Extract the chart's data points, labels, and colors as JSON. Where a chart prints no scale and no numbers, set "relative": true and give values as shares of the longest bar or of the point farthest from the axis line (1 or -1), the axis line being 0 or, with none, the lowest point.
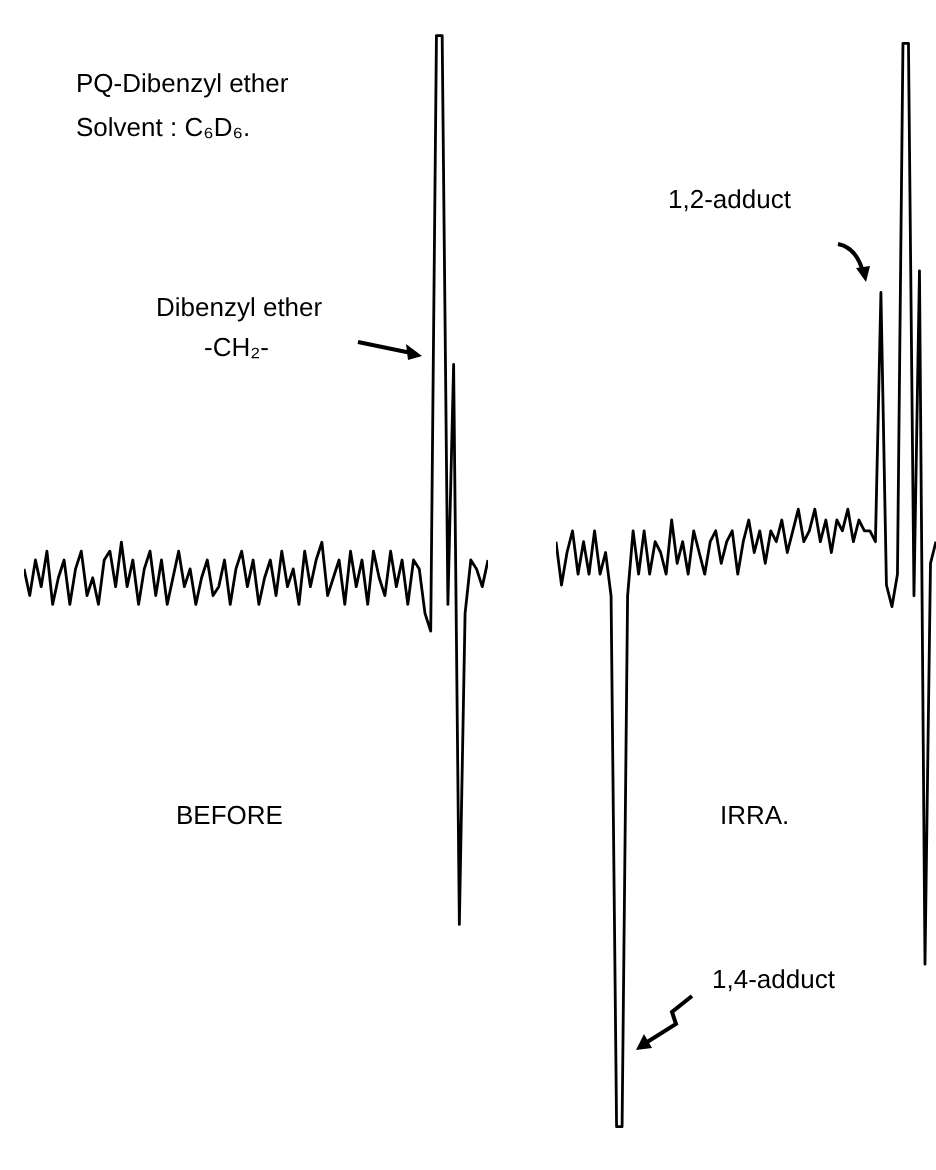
{
  "chart_data": [
    {
      "type": "line",
      "relative": true,
      "marker": "none",
      "color": "#000000",
      "categories": [
        null,
        null,
        null,
        null,
        null,
        null,
        null,
        null,
        null,
        null,
        null,
        null,
        null,
        null,
        null,
        null,
        null,
        null,
        null,
        null,
        null,
        null,
        null,
        null,
        null,
        null,
        null,
        null,
        null,
        null,
        null,
        null,
        null,
        null,
        null,
        null,
        null,
        null,
        null,
        null,
        null,
        null,
        null,
        null,
        null,
        null,
        null,
        null,
        null,
        null,
        null,
        null,
        null,
        null,
        null,
        null,
        null,
        null,
        null,
        null,
        null,
        null,
        null,
        null,
        null,
        null,
        null,
        null,
        null,
        null,
        null,
        null,
        null,
        null,
        null,
        null,
        null,
        null,
        null,
        null,
        null,
        null
      ],
      "values": [
        0.4,
        0.37,
        0.41,
        0.38,
        0.42,
        0.36,
        0.39,
        0.41,
        0.36,
        0.4,
        0.42,
        0.37,
        0.39,
        0.36,
        0.41,
        0.42,
        0.38,
        0.43,
        0.38,
        0.41,
        0.36,
        0.4,
        0.42,
        0.37,
        0.41,
        0.36,
        0.39,
        0.42,
        0.38,
        0.4,
        0.36,
        0.39,
        0.41,
        0.37,
        0.38,
        0.41,
        0.36,
        0.4,
        0.42,
        0.38,
        0.41,
        0.36,
        0.39,
        0.41,
        0.37,
        0.42,
        0.38,
        0.4,
        0.36,
        0.42,
        0.38,
        0.41,
        0.43,
        0.37,
        0.39,
        0.41,
        0.36,
        0.42,
        0.38,
        0.41,
        0.36,
        0.42,
        0.39,
        0.37,
        0.42,
        0.38,
        0.41,
        0.36,
        0.41,
        0.4,
        0.35,
        0.33,
        1,
        1,
        0.36,
        0.63,
        0,
        0.35,
        0.41,
        0.4,
        0.38,
        0.41
      ],
      "annotations": [
        "PQ-Dibenzyl ether",
        "Solvent : C₆D₆.",
        "Dibenzyl ether",
        "-CH₂-",
        "BEFORE"
      ]
    },
    {
      "type": "line",
      "relative": true,
      "marker": "none",
      "color": "#000000",
      "categories": [
        null,
        null,
        null,
        null,
        null,
        null,
        null,
        null,
        null,
        null,
        null,
        null,
        null,
        null,
        null,
        null,
        null,
        null,
        null,
        null,
        null,
        null,
        null,
        null,
        null,
        null,
        null,
        null,
        null,
        null,
        null,
        null,
        null,
        null,
        null,
        null,
        null,
        null,
        null,
        null,
        null,
        null,
        null,
        null,
        null,
        null,
        null,
        null,
        null,
        null,
        null,
        null,
        null,
        null,
        null,
        null,
        null,
        null,
        null,
        null,
        null,
        null,
        null,
        null,
        null,
        null,
        null,
        null,
        null,
        null
      ],
      "values": [
        0.54,
        0.5,
        0.53,
        0.55,
        0.51,
        0.54,
        0.51,
        0.55,
        0.51,
        0.53,
        0.49,
        0,
        0,
        0.49,
        0.55,
        0.51,
        0.55,
        0.51,
        0.54,
        0.53,
        0.51,
        0.56,
        0.52,
        0.54,
        0.51,
        0.55,
        0.53,
        0.51,
        0.54,
        0.55,
        0.52,
        0.54,
        0.55,
        0.51,
        0.54,
        0.56,
        0.53,
        0.55,
        0.52,
        0.55,
        0.54,
        0.56,
        0.53,
        0.55,
        0.57,
        0.54,
        0.55,
        0.57,
        0.54,
        0.56,
        0.53,
        0.56,
        0.55,
        0.57,
        0.54,
        0.56,
        0.55,
        0.55,
        0.54,
        0.77,
        0.5,
        0.48,
        0.51,
        1,
        1,
        0.49,
        0.79,
        0.15,
        0.52,
        0.54
      ],
      "annotations": [
        "1,2-adduct",
        "1,4-adduct",
        "IRRA."
      ]
    }
  ]
}
